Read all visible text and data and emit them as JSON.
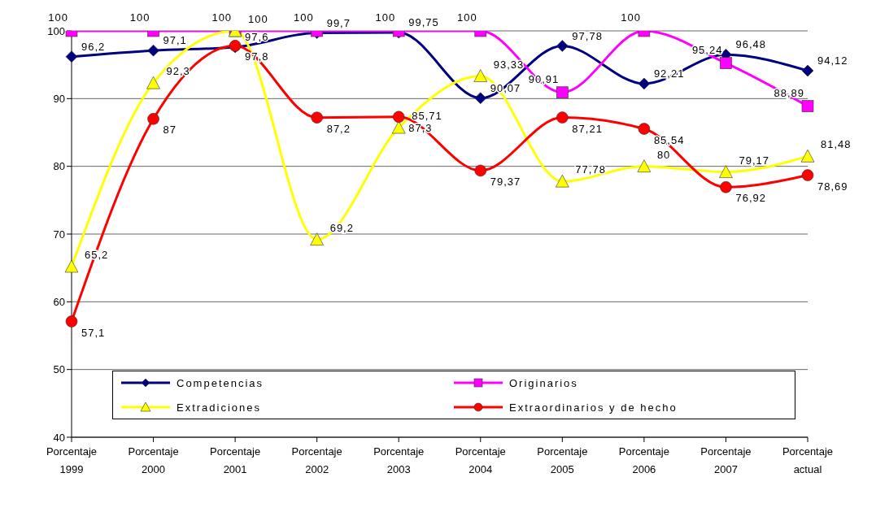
{
  "chart_data": {
    "type": "line",
    "categories": [
      "Porcentaje 1999",
      "Porcentaje 2000",
      "Porcentaje 2001",
      "Porcentaje 2002",
      "Porcentaje 2003",
      "Porcentaje 2004",
      "Porcentaje 2005",
      "Porcentaje 2006",
      "Porcentaje 2007",
      "Porcentaje actual"
    ],
    "series": [
      {
        "name": "Competencias",
        "color": "#000080",
        "marker": "diamond",
        "values": [
          96.2,
          97.1,
          97.6,
          99.7,
          99.75,
          90.07,
          97.78,
          92.21,
          96.48,
          94.12
        ],
        "value_labels": [
          "96,2",
          "97,1",
          "97,6",
          "99,7",
          "99,75",
          "90,07",
          "97,78",
          "92,21",
          "96,48",
          "94,12"
        ]
      },
      {
        "name": "Originarios",
        "color": "#ff00ff",
        "marker": "square",
        "values": [
          100,
          100,
          100,
          100,
          100,
          100,
          90.91,
          100,
          95.24,
          88.89
        ],
        "value_labels": [
          "100",
          "100",
          "100",
          "100",
          "100",
          "100",
          "90,91",
          "100",
          "95,24",
          "88,89"
        ]
      },
      {
        "name": "Extradiciones",
        "color": "#ffff00",
        "marker": "triangle",
        "values": [
          65.2,
          92.3,
          100,
          69.2,
          85.71,
          93.33,
          77.78,
          80,
          79.17,
          81.48
        ],
        "value_labels": [
          "65,2",
          "92,3",
          "100",
          "69,2",
          "85,71",
          "93,33",
          "77,78",
          "80",
          "79,17",
          "81,48"
        ]
      },
      {
        "name": "Extraordinarios y de hecho",
        "color": "#ff0000",
        "marker": "circle",
        "values": [
          57.1,
          87,
          97.8,
          87.2,
          87.3,
          79.37,
          87.21,
          85.54,
          76.92,
          78.69
        ],
        "value_labels": [
          "57,1",
          "87",
          "97,8",
          "87,2",
          "87,3",
          "79,37",
          "87,21",
          "85,54",
          "76,92",
          "78,69"
        ]
      }
    ],
    "ylim": [
      40,
      100
    ],
    "yticks": [
      40,
      50,
      60,
      70,
      80,
      90,
      100
    ],
    "grid": "y",
    "legend": "bottom",
    "line_style": "solid"
  }
}
